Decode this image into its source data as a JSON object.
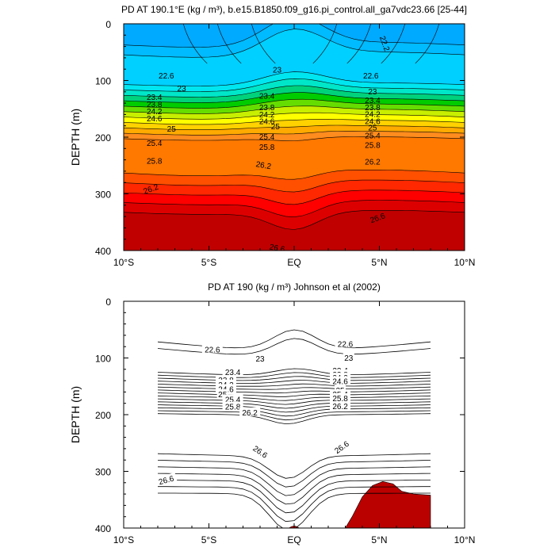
{
  "chart_data": [
    {
      "type": "contour",
      "title": "PD AT 190.1°E (kg / m³), b.e15.B1850.f09_g16.pi_control.all_ga7vdc23.66 [25-44]",
      "ylabel": "DEPTH (m)",
      "xlim": [
        -10,
        10
      ],
      "ylim": [
        0,
        400
      ],
      "y_inverted": true,
      "x_ticks": [
        {
          "value": -10,
          "label": "10°S"
        },
        {
          "value": -5,
          "label": "5°S"
        },
        {
          "value": 0,
          "label": "EQ"
        },
        {
          "value": 5,
          "label": "5°N"
        },
        {
          "value": 10,
          "label": "10°N"
        }
      ],
      "y_ticks": [
        {
          "value": 0,
          "label": "0"
        },
        {
          "value": 100,
          "label": "100"
        },
        {
          "value": 200,
          "label": "200"
        },
        {
          "value": 300,
          "label": "300"
        },
        {
          "value": 400,
          "label": "400"
        }
      ],
      "filled": true,
      "fill_colors": [
        "#00aaff",
        "#00bbff",
        "#00d0ff",
        "#00e6f0",
        "#00e6c8",
        "#00d27c",
        "#00cc00",
        "#66dd00",
        "#c8ee00",
        "#ffff00",
        "#ffd200",
        "#ffaa00",
        "#ff8c1e",
        "#ff7800",
        "#ff5000",
        "#ff2800",
        "#ff0000",
        "#dd0000",
        "#c00000"
      ],
      "contour_labels": [
        {
          "text": "22.2",
          "lat": 5.3,
          "depth": 35,
          "angle": 70
        },
        {
          "text": "22.6",
          "lat": -7.5,
          "depth": 92,
          "angle": 0
        },
        {
          "text": "22.6",
          "lat": 4.5,
          "depth": 92,
          "angle": 0
        },
        {
          "text": "23",
          "lat": -6.6,
          "depth": 115,
          "angle": 0
        },
        {
          "text": "23",
          "lat": -1.0,
          "depth": 82,
          "angle": 0
        },
        {
          "text": "23",
          "lat": 4.6,
          "depth": 120,
          "angle": 0
        },
        {
          "text": "23.4",
          "lat": -8.2,
          "depth": 130,
          "angle": 0
        },
        {
          "text": "23.4",
          "lat": -1.6,
          "depth": 128,
          "angle": 0
        },
        {
          "text": "23.4",
          "lat": 4.6,
          "depth": 136,
          "angle": 0
        },
        {
          "text": "23.8",
          "lat": -8.2,
          "depth": 143,
          "angle": 0
        },
        {
          "text": "23.8",
          "lat": -1.6,
          "depth": 148,
          "angle": 0
        },
        {
          "text": "23.8",
          "lat": 4.6,
          "depth": 148,
          "angle": 0
        },
        {
          "text": "24.2",
          "lat": -8.2,
          "depth": 155,
          "angle": 0
        },
        {
          "text": "24.2",
          "lat": -1.6,
          "depth": 161,
          "angle": 0
        },
        {
          "text": "24.2",
          "lat": 4.6,
          "depth": 160,
          "angle": 0
        },
        {
          "text": "24.6",
          "lat": -8.2,
          "depth": 168,
          "angle": 0
        },
        {
          "text": "24.6",
          "lat": -1.6,
          "depth": 173,
          "angle": 0
        },
        {
          "text": "24.6",
          "lat": 4.6,
          "depth": 173,
          "angle": 0
        },
        {
          "text": "25",
          "lat": -7.2,
          "depth": 186,
          "angle": 0
        },
        {
          "text": "25",
          "lat": -1.1,
          "depth": 182,
          "angle": 0
        },
        {
          "text": "25",
          "lat": 4.6,
          "depth": 184,
          "angle": 0
        },
        {
          "text": "25.4",
          "lat": -8.2,
          "depth": 211,
          "angle": 0
        },
        {
          "text": "25.4",
          "lat": -1.6,
          "depth": 200,
          "angle": 0
        },
        {
          "text": "25.4",
          "lat": 4.6,
          "depth": 198,
          "angle": 0
        },
        {
          "text": "25.8",
          "lat": -8.2,
          "depth": 243,
          "angle": 0
        },
        {
          "text": "25.8",
          "lat": -1.6,
          "depth": 218,
          "angle": 0
        },
        {
          "text": "25.8",
          "lat": 4.6,
          "depth": 215,
          "angle": 0
        },
        {
          "text": "26.2",
          "lat": -1.8,
          "depth": 250,
          "angle": 10
        },
        {
          "text": "26.2",
          "lat": 4.6,
          "depth": 244,
          "angle": 0
        },
        {
          "text": "26.2",
          "lat": -8.4,
          "depth": 292,
          "angle": -20
        },
        {
          "text": "26.6",
          "lat": 4.9,
          "depth": 343,
          "angle": -20
        },
        {
          "text": "26.6",
          "lat": -1.0,
          "depth": 396,
          "angle": 10
        }
      ]
    },
    {
      "type": "contour",
      "title": "PD AT 190 (kg / m³) Johnson et al (2002)",
      "ylabel": "DEPTH (m)",
      "xlim": [
        -10,
        10
      ],
      "ylim": [
        0,
        400
      ],
      "y_inverted": true,
      "x_ticks": [
        {
          "value": -10,
          "label": "10°S"
        },
        {
          "value": -5,
          "label": "5°S"
        },
        {
          "value": 0,
          "label": "EQ"
        },
        {
          "value": 5,
          "label": "5°N"
        },
        {
          "value": 10,
          "label": "10°N"
        }
      ],
      "y_ticks": [
        {
          "value": 0,
          "label": "0"
        },
        {
          "value": 100,
          "label": "100"
        },
        {
          "value": 200,
          "label": "200"
        },
        {
          "value": 300,
          "label": "300"
        },
        {
          "value": 400,
          "label": "400"
        }
      ],
      "filled": false,
      "data_lat_range": [
        -8,
        8
      ],
      "contour_labels": [
        {
          "text": "22.6",
          "lat": -4.8,
          "depth": 86,
          "angle": 0
        },
        {
          "text": "22.6",
          "lat": 3.0,
          "depth": 76,
          "angle": 0
        },
        {
          "text": "23",
          "lat": -2.0,
          "depth": 102,
          "angle": 0
        },
        {
          "text": "23",
          "lat": 3.2,
          "depth": 101,
          "angle": 0
        },
        {
          "text": "23.4",
          "lat": -3.6,
          "depth": 126,
          "angle": 0
        },
        {
          "text": "23.8",
          "lat": -4.0,
          "depth": 140,
          "angle": 0
        },
        {
          "text": "24.2",
          "lat": -4.0,
          "depth": 148,
          "angle": 0
        },
        {
          "text": "24.6",
          "lat": -4.0,
          "depth": 156,
          "angle": 0
        },
        {
          "text": "25",
          "lat": -4.2,
          "depth": 165,
          "angle": 0
        },
        {
          "text": "25.4",
          "lat": -3.6,
          "depth": 174,
          "angle": 0
        },
        {
          "text": "25.8",
          "lat": -3.6,
          "depth": 187,
          "angle": 0
        },
        {
          "text": "26.2",
          "lat": -2.6,
          "depth": 197,
          "angle": 0
        },
        {
          "text": "23.4",
          "lat": 2.7,
          "depth": 123,
          "angle": 0
        },
        {
          "text": "23.8",
          "lat": 2.7,
          "depth": 130,
          "angle": 0
        },
        {
          "text": "24.2",
          "lat": 2.7,
          "depth": 136,
          "angle": 0
        },
        {
          "text": "24.6",
          "lat": 2.7,
          "depth": 142,
          "angle": 0
        },
        {
          "text": "25",
          "lat": 2.7,
          "depth": 158,
          "angle": 0
        },
        {
          "text": "25.4",
          "lat": 2.7,
          "depth": 165,
          "angle": 0
        },
        {
          "text": "25.8",
          "lat": 2.7,
          "depth": 172,
          "angle": 0
        },
        {
          "text": "26.2",
          "lat": 2.7,
          "depth": 186,
          "angle": 0
        },
        {
          "text": "26.6",
          "lat": -2.0,
          "depth": 266,
          "angle": 35
        },
        {
          "text": "26.6",
          "lat": 2.8,
          "depth": 258,
          "angle": -35
        },
        {
          "text": "26.6",
          "lat": -7.5,
          "depth": 316,
          "angle": -15
        }
      ],
      "filled_regions": [
        {
          "label": "26.6+ (deep)",
          "color": "#bb0000"
        }
      ]
    }
  ]
}
